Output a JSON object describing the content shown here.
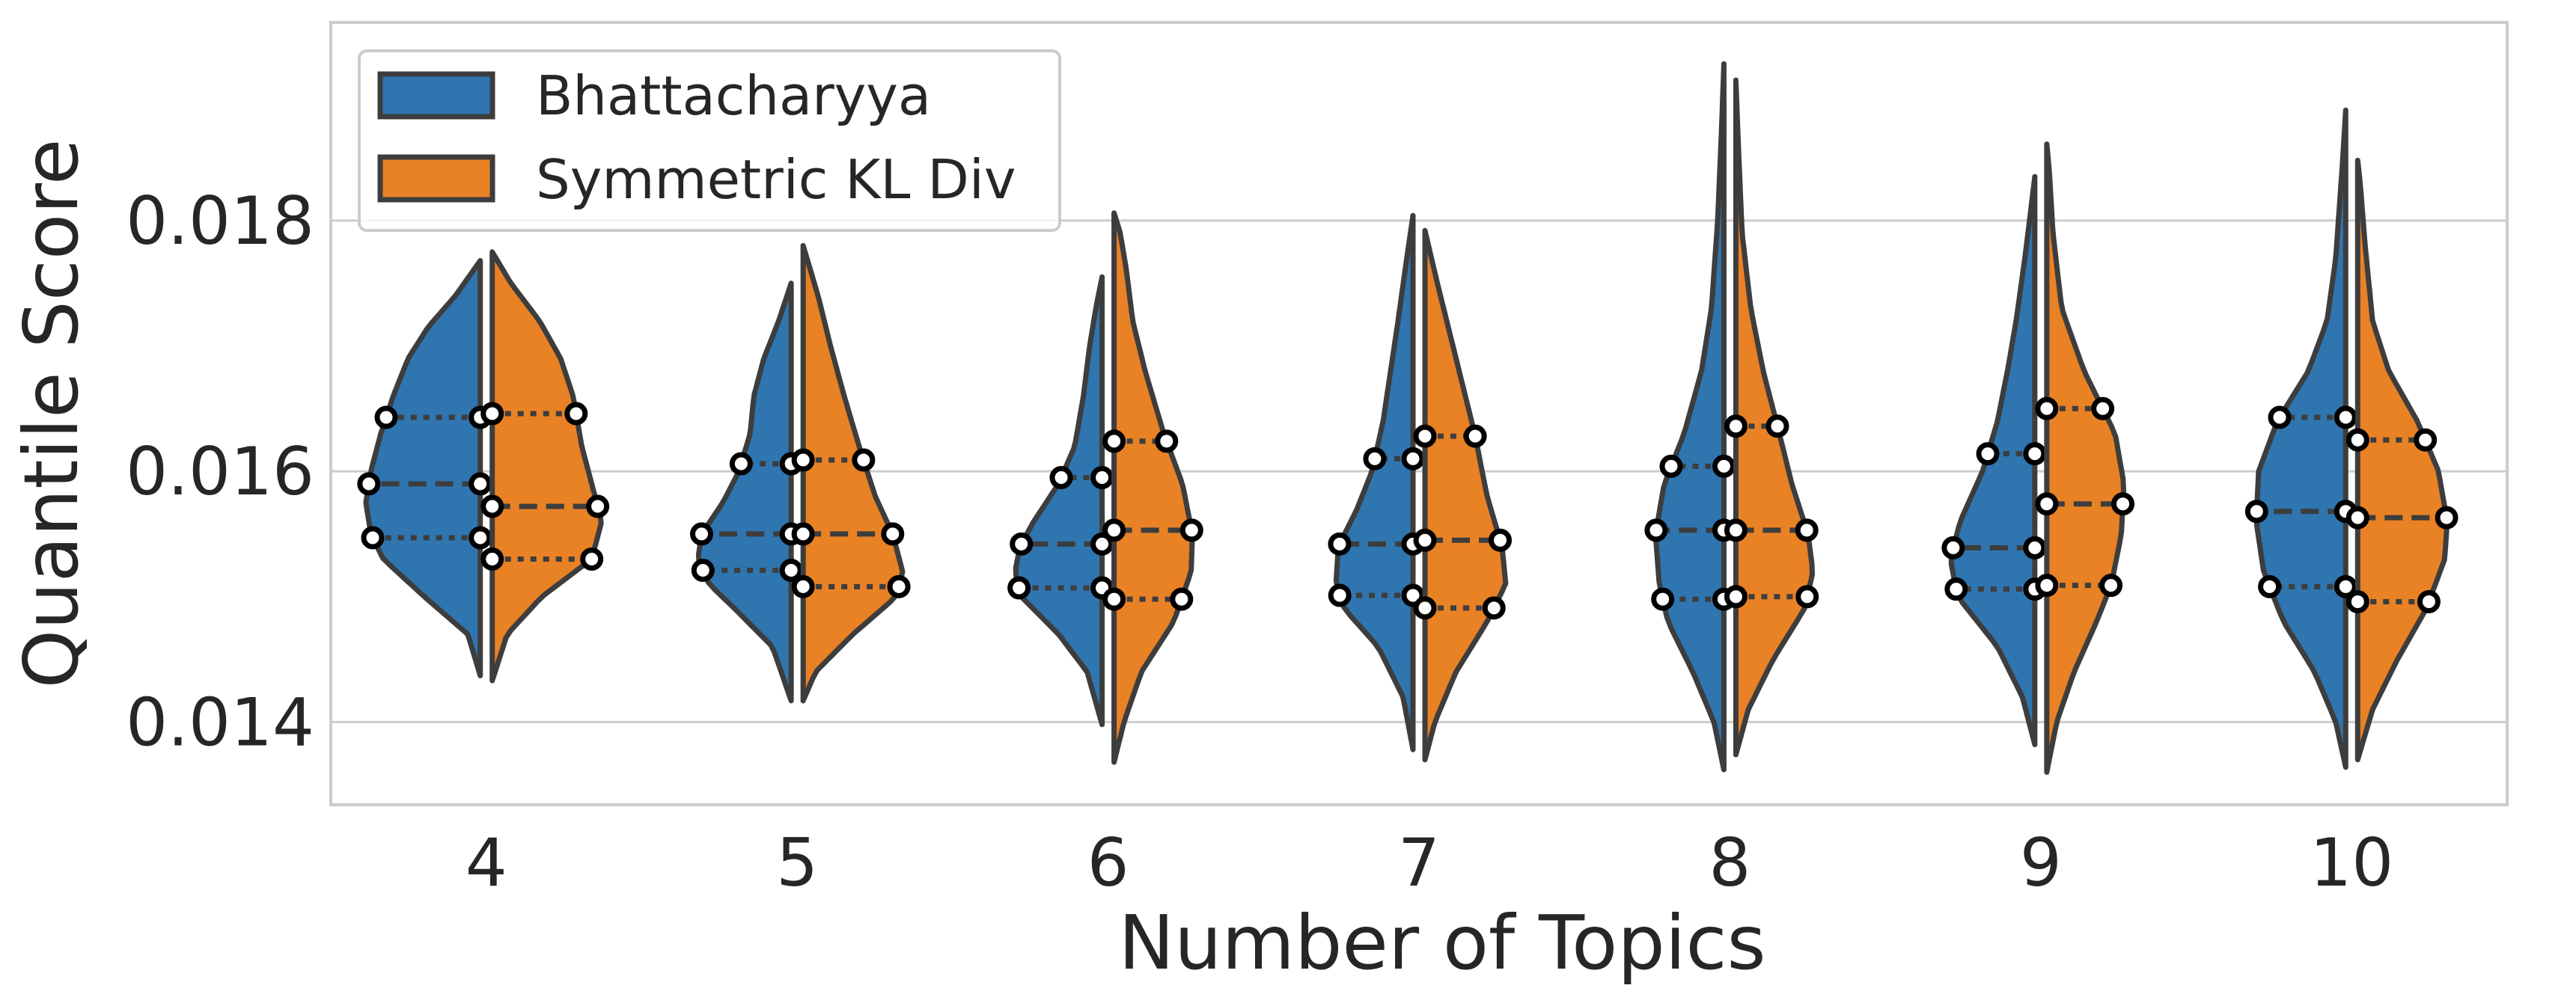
{
  "chart_data": {
    "type": "violin",
    "split": true,
    "title": "",
    "xlabel": "Number of Topics",
    "ylabel": "Quantile Score",
    "ylim": [
      0.01334,
      0.01958
    ],
    "yticks": [
      0.014,
      0.016,
      0.018
    ],
    "ytick_labels": [
      "0.014",
      "0.016",
      "0.018"
    ],
    "grid": true,
    "legend_position": "top-left",
    "categories": [
      "4",
      "5",
      "6",
      "7",
      "8",
      "9",
      "10"
    ],
    "series": [
      {
        "name": "Bhattacharyya",
        "color": "#2f75b0",
        "side": "left",
        "quartiles": [
          [
            0.01547,
            0.0159,
            0.01643
          ],
          [
            0.01521,
            0.0155,
            0.01606
          ],
          [
            0.01507,
            0.01542,
            0.01595
          ],
          [
            0.01501,
            0.01542,
            0.0161
          ],
          [
            0.01498,
            0.01553,
            0.01604
          ],
          [
            0.01506,
            0.01539,
            0.01614
          ],
          [
            0.01508,
            0.01568,
            0.01643
          ]
        ],
        "extent": [
          [
            0.01437,
            0.01768
          ],
          [
            0.01417,
            0.0175
          ],
          [
            0.01398,
            0.01755
          ],
          [
            0.01378,
            0.01804
          ],
          [
            0.01362,
            0.01925
          ],
          [
            0.01382,
            0.01835
          ],
          [
            0.01364,
            0.01888
          ]
        ],
        "profile": [
          [
            [
              0.01437,
              0.0
            ],
            [
              0.0147,
              0.1
            ],
            [
              0.015,
              0.45
            ],
            [
              0.0153,
              0.78
            ],
            [
              0.0155,
              0.88
            ],
            [
              0.01575,
              0.92
            ],
            [
              0.016,
              0.88
            ],
            [
              0.0163,
              0.8
            ],
            [
              0.0166,
              0.7
            ],
            [
              0.0169,
              0.58
            ],
            [
              0.01715,
              0.42
            ],
            [
              0.0174,
              0.2
            ],
            [
              0.01768,
              0.0
            ]
          ],
          [
            [
              0.01417,
              0.0
            ],
            [
              0.0146,
              0.15
            ],
            [
              0.0149,
              0.45
            ],
            [
              0.0151,
              0.66
            ],
            [
              0.0153,
              0.75
            ],
            [
              0.0155,
              0.72
            ],
            [
              0.01575,
              0.55
            ],
            [
              0.016,
              0.42
            ],
            [
              0.0163,
              0.33
            ],
            [
              0.0166,
              0.3
            ],
            [
              0.0169,
              0.22
            ],
            [
              0.0172,
              0.1
            ],
            [
              0.0175,
              0.0
            ]
          ],
          [
            [
              0.01398,
              0.0
            ],
            [
              0.0144,
              0.12
            ],
            [
              0.0147,
              0.35
            ],
            [
              0.015,
              0.65
            ],
            [
              0.0152,
              0.7
            ],
            [
              0.0154,
              0.66
            ],
            [
              0.0156,
              0.55
            ],
            [
              0.0159,
              0.35
            ],
            [
              0.0162,
              0.22
            ],
            [
              0.0166,
              0.15
            ],
            [
              0.017,
              0.1
            ],
            [
              0.0173,
              0.05
            ],
            [
              0.01755,
              0.0
            ]
          ],
          [
            [
              0.01378,
              0.0
            ],
            [
              0.0142,
              0.08
            ],
            [
              0.0146,
              0.28
            ],
            [
              0.0149,
              0.55
            ],
            [
              0.0151,
              0.62
            ],
            [
              0.0154,
              0.6
            ],
            [
              0.0157,
              0.45
            ],
            [
              0.016,
              0.33
            ],
            [
              0.0164,
              0.24
            ],
            [
              0.0168,
              0.18
            ],
            [
              0.0172,
              0.12
            ],
            [
              0.0177,
              0.05
            ],
            [
              0.01804,
              0.0
            ]
          ],
          [
            [
              0.01362,
              0.0
            ],
            [
              0.014,
              0.08
            ],
            [
              0.0144,
              0.25
            ],
            [
              0.0148,
              0.45
            ],
            [
              0.0151,
              0.52
            ],
            [
              0.0155,
              0.55
            ],
            [
              0.0159,
              0.48
            ],
            [
              0.0163,
              0.32
            ],
            [
              0.0168,
              0.18
            ],
            [
              0.0173,
              0.1
            ],
            [
              0.018,
              0.05
            ],
            [
              0.0187,
              0.02
            ],
            [
              0.01925,
              0.0
            ]
          ],
          [
            [
              0.01382,
              0.0
            ],
            [
              0.0142,
              0.1
            ],
            [
              0.0146,
              0.3
            ],
            [
              0.015,
              0.62
            ],
            [
              0.0153,
              0.68
            ],
            [
              0.0156,
              0.6
            ],
            [
              0.016,
              0.42
            ],
            [
              0.0164,
              0.3
            ],
            [
              0.0168,
              0.22
            ],
            [
              0.0172,
              0.15
            ],
            [
              0.0177,
              0.08
            ],
            [
              0.0181,
              0.03
            ],
            [
              0.01835,
              0.0
            ]
          ],
          [
            [
              0.01364,
              0.0
            ],
            [
              0.014,
              0.08
            ],
            [
              0.0144,
              0.25
            ],
            [
              0.0148,
              0.5
            ],
            [
              0.0152,
              0.66
            ],
            [
              0.0156,
              0.72
            ],
            [
              0.016,
              0.7
            ],
            [
              0.0164,
              0.55
            ],
            [
              0.0168,
              0.3
            ],
            [
              0.0172,
              0.15
            ],
            [
              0.0177,
              0.08
            ],
            [
              0.0184,
              0.03
            ],
            [
              0.01888,
              0.0
            ]
          ]
        ]
      },
      {
        "name": "Symmetric KL Div",
        "color": "#e98125",
        "side": "right",
        "quartiles": [
          [
            0.0153,
            0.01572,
            0.01646
          ],
          [
            0.01508,
            0.0155,
            0.01609
          ],
          [
            0.01498,
            0.01553,
            0.01624
          ],
          [
            0.01491,
            0.01545,
            0.01628
          ],
          [
            0.015,
            0.01553,
            0.01636
          ],
          [
            0.01509,
            0.01574,
            0.0165
          ],
          [
            0.01496,
            0.01563,
            0.01625
          ]
        ],
        "extent": [
          [
            0.01433,
            0.01775
          ],
          [
            0.01417,
            0.0178
          ],
          [
            0.01368,
            0.01806
          ],
          [
            0.0137,
            0.01792
          ],
          [
            0.01374,
            0.01912
          ],
          [
            0.0136,
            0.01861
          ],
          [
            0.0137,
            0.01848
          ]
        ],
        "profile": [
          [
            [
              0.01433,
              0.0
            ],
            [
              0.0147,
              0.12
            ],
            [
              0.015,
              0.4
            ],
            [
              0.0153,
              0.8
            ],
            [
              0.0156,
              0.88
            ],
            [
              0.0159,
              0.8
            ],
            [
              0.0162,
              0.72
            ],
            [
              0.0166,
              0.65
            ],
            [
              0.0169,
              0.55
            ],
            [
              0.0172,
              0.38
            ],
            [
              0.0175,
              0.15
            ],
            [
              0.01775,
              0.0
            ]
          ],
          [
            [
              0.01417,
              0.0
            ],
            [
              0.0144,
              0.1
            ],
            [
              0.0147,
              0.4
            ],
            [
              0.015,
              0.75
            ],
            [
              0.0152,
              0.8
            ],
            [
              0.0155,
              0.72
            ],
            [
              0.0158,
              0.58
            ],
            [
              0.0162,
              0.45
            ],
            [
              0.0166,
              0.33
            ],
            [
              0.017,
              0.22
            ],
            [
              0.0174,
              0.12
            ],
            [
              0.0178,
              0.0
            ]
          ],
          [
            [
              0.01368,
              0.0
            ],
            [
              0.014,
              0.08
            ],
            [
              0.0144,
              0.22
            ],
            [
              0.0148,
              0.48
            ],
            [
              0.0152,
              0.62
            ],
            [
              0.0155,
              0.63
            ],
            [
              0.0159,
              0.55
            ],
            [
              0.0163,
              0.4
            ],
            [
              0.0168,
              0.25
            ],
            [
              0.0172,
              0.15
            ],
            [
              0.0176,
              0.1
            ],
            [
              0.0179,
              0.05
            ],
            [
              0.01806,
              0.0
            ]
          ],
          [
            [
              0.0137,
              0.0
            ],
            [
              0.014,
              0.08
            ],
            [
              0.0144,
              0.25
            ],
            [
              0.0148,
              0.5
            ],
            [
              0.0151,
              0.65
            ],
            [
              0.0154,
              0.62
            ],
            [
              0.0158,
              0.5
            ],
            [
              0.0163,
              0.4
            ],
            [
              0.0167,
              0.3
            ],
            [
              0.0171,
              0.2
            ],
            [
              0.0175,
              0.1
            ],
            [
              0.01792,
              0.0
            ]
          ],
          [
            [
              0.01374,
              0.0
            ],
            [
              0.0141,
              0.1
            ],
            [
              0.0145,
              0.3
            ],
            [
              0.0149,
              0.55
            ],
            [
              0.0152,
              0.62
            ],
            [
              0.0155,
              0.58
            ],
            [
              0.0159,
              0.45
            ],
            [
              0.0163,
              0.35
            ],
            [
              0.0168,
              0.22
            ],
            [
              0.0173,
              0.12
            ],
            [
              0.0179,
              0.05
            ],
            [
              0.0186,
              0.02
            ],
            [
              0.01912,
              0.0
            ]
          ],
          [
            [
              0.0136,
              0.0
            ],
            [
              0.014,
              0.08
            ],
            [
              0.0144,
              0.22
            ],
            [
              0.0148,
              0.4
            ],
            [
              0.0151,
              0.52
            ],
            [
              0.0155,
              0.6
            ],
            [
              0.0159,
              0.62
            ],
            [
              0.0163,
              0.55
            ],
            [
              0.0168,
              0.3
            ],
            [
              0.0173,
              0.12
            ],
            [
              0.0179,
              0.05
            ],
            [
              0.0184,
              0.02
            ],
            [
              0.01861,
              0.0
            ]
          ],
          [
            [
              0.0137,
              0.0
            ],
            [
              0.0141,
              0.12
            ],
            [
              0.0145,
              0.32
            ],
            [
              0.0149,
              0.55
            ],
            [
              0.0153,
              0.7
            ],
            [
              0.0156,
              0.72
            ],
            [
              0.016,
              0.65
            ],
            [
              0.0164,
              0.48
            ],
            [
              0.0168,
              0.25
            ],
            [
              0.0172,
              0.12
            ],
            [
              0.0178,
              0.06
            ],
            [
              0.0183,
              0.02
            ],
            [
              0.01848,
              0.0
            ]
          ]
        ]
      }
    ]
  }
}
